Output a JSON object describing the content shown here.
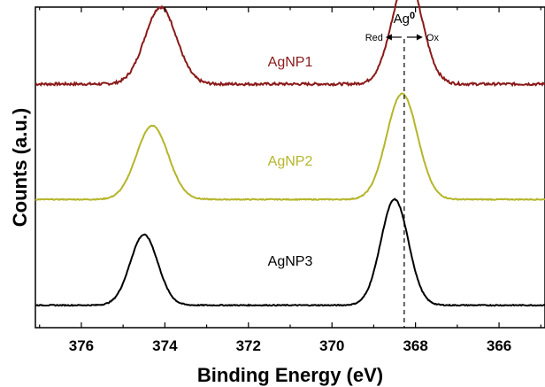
{
  "chart_data": {
    "type": "line",
    "xlabel": "Binding Energy (eV)",
    "ylabel": "Counts (a.u.)",
    "xlim": [
      377.1,
      364.9
    ],
    "x_reversed": true,
    "y_ticks_shown": false,
    "x_ticks": [
      376,
      374,
      372,
      370,
      368,
      366
    ],
    "x_tick_labels": [
      "376",
      "374",
      "372",
      "370",
      "368",
      "366"
    ],
    "reference_line": {
      "x": 368.27,
      "style": "dashed",
      "label": "Ag0",
      "label_base": "Ag",
      "label_superscript": "0"
    },
    "direction_labels": {
      "left": "Red",
      "right": "Ox"
    },
    "series": [
      {
        "name": "AgNP1",
        "color": "#8b1a1a",
        "baseline": 0.76,
        "peaks": [
          {
            "center": 374.1,
            "height": 0.24,
            "width": 0.38
          },
          {
            "center": 368.2,
            "height": 0.33,
            "width": 0.36
          }
        ]
      },
      {
        "name": "AgNP2",
        "color": "#b5b52a",
        "baseline": 0.4,
        "peaks": [
          {
            "center": 374.3,
            "height": 0.23,
            "width": 0.38
          },
          {
            "center": 368.32,
            "height": 0.33,
            "width": 0.37
          }
        ]
      },
      {
        "name": "AgNP3",
        "color": "#000000",
        "baseline": 0.07,
        "peaks": [
          {
            "center": 374.5,
            "height": 0.22,
            "width": 0.33
          },
          {
            "center": 368.5,
            "height": 0.33,
            "width": 0.33
          }
        ]
      }
    ]
  }
}
